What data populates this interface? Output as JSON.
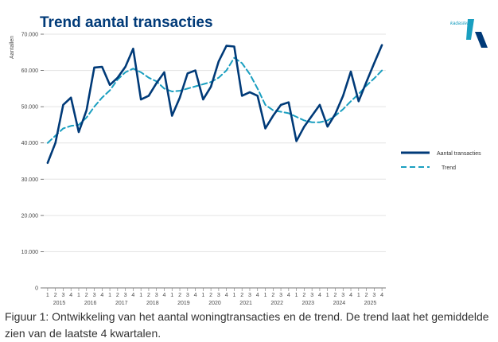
{
  "caption": "Figuur 1: Ontwikkeling van het aantal woningtransacties en de trend. De trend laat het gemiddelde zien van de laatste 4 kwartalen.",
  "brand": {
    "name": "kadaster"
  },
  "colors": {
    "actual": "#003a78",
    "trend": "#1a9fc0",
    "title": "#003a78",
    "grid": "#e3e3e3"
  },
  "chart_data": {
    "type": "line",
    "title": "Trend aantal transacties",
    "ylabel": "Aantallen",
    "xlabel": "",
    "ylim": [
      0,
      70000
    ],
    "yticks": [
      "0",
      "10.000",
      "20.000",
      "30.000",
      "40.000",
      "50.000",
      "60.000",
      "70.000"
    ],
    "quarter_labels": [
      "1",
      "2",
      "3",
      "4"
    ],
    "years": [
      "2015",
      "2016",
      "2017",
      "2018",
      "2019",
      "2020",
      "2021",
      "2022",
      "2023",
      "2024",
      "2025"
    ],
    "legend": {
      "position": "right",
      "actual_label": "Aantal transacties",
      "trend_label": "Trend"
    },
    "series": [
      {
        "name": "Aantal transacties",
        "values": [
          34500,
          40000,
          50500,
          52500,
          43000,
          49000,
          60800,
          61000,
          56000,
          58000,
          61000,
          66000,
          52000,
          53000,
          56500,
          59500,
          47500,
          52500,
          59200,
          60000,
          52000,
          55500,
          62500,
          66800,
          66600,
          53000,
          54000,
          53000,
          44000,
          47500,
          50500,
          51200,
          40500,
          44500,
          47500,
          50500,
          44500,
          48000,
          53000,
          59700,
          51500,
          56800,
          62000,
          67000
        ]
      },
      {
        "name": "Trend",
        "values": [
          40000,
          42000,
          44000,
          44700,
          45000,
          47000,
          50000,
          52500,
          54500,
          57500,
          59500,
          60500,
          59500,
          58000,
          57000,
          55000,
          54200,
          54400,
          55000,
          55600,
          56200,
          56800,
          58000,
          60000,
          63500,
          62000,
          59000,
          55000,
          50500,
          49000,
          48600,
          48200,
          47200,
          46200,
          45700,
          45700,
          46200,
          47500,
          49300,
          51500,
          53500,
          55800,
          57800,
          60000
        ]
      }
    ]
  }
}
